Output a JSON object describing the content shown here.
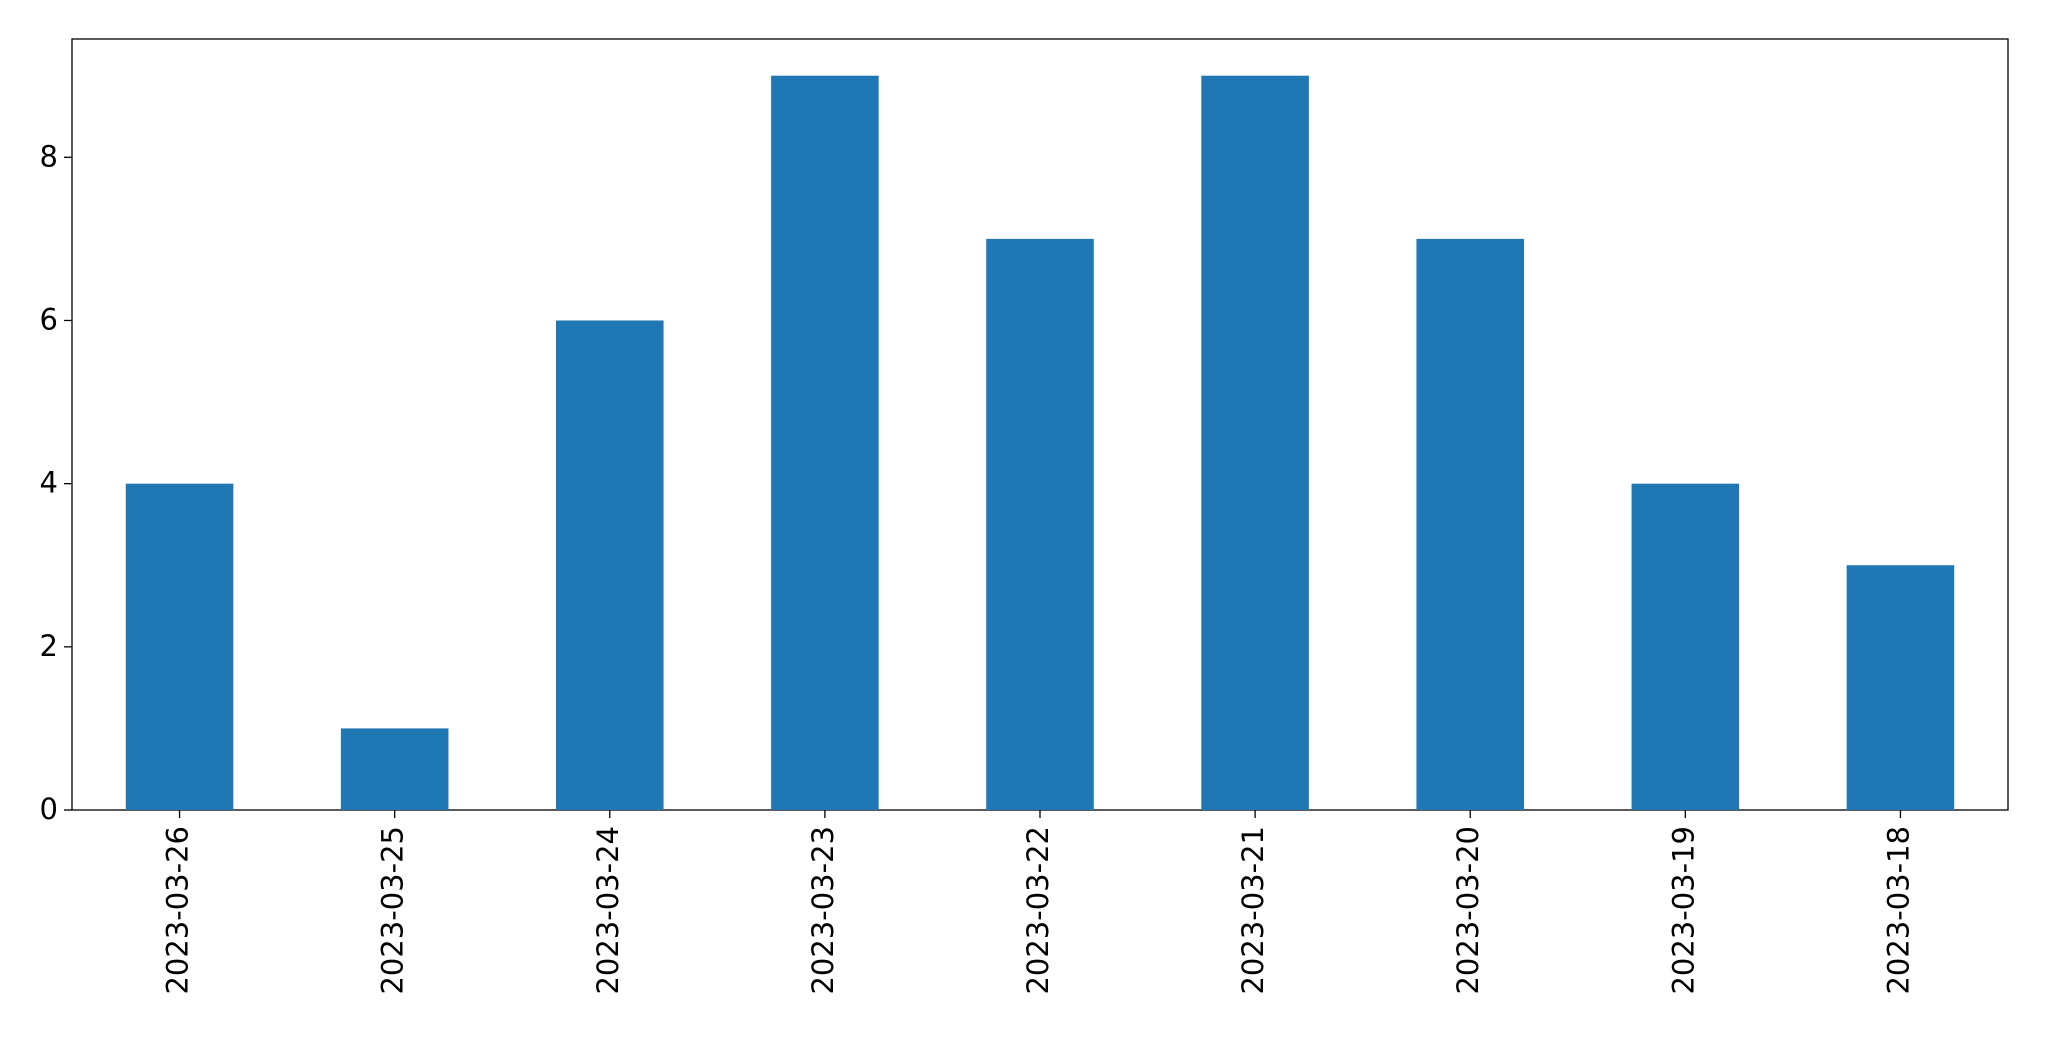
{
  "chart_data": {
    "type": "bar",
    "categories": [
      "2023-03-26",
      "2023-03-25",
      "2023-03-24",
      "2023-03-23",
      "2023-03-22",
      "2023-03-21",
      "2023-03-20",
      "2023-03-19",
      "2023-03-18"
    ],
    "values": [
      4,
      1,
      6,
      9,
      7,
      9,
      7,
      4,
      3
    ],
    "color": "#1f77b4",
    "ylim": [
      0,
      9.45
    ],
    "yticks": [
      0,
      2,
      4,
      6,
      8
    ],
    "grid": false
  }
}
